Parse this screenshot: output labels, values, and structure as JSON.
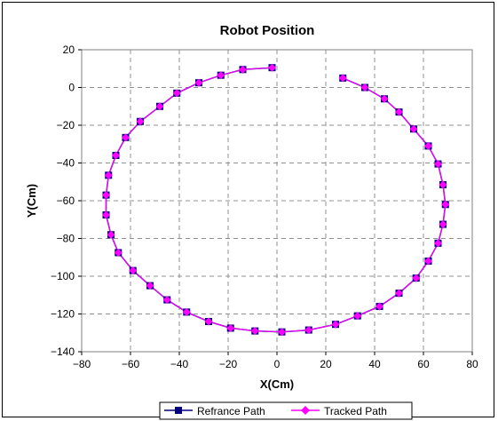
{
  "chart_data": {
    "type": "scatter",
    "title": "Robot Position",
    "xlabel": "X(Cm)",
    "ylabel": "Y(Cm)",
    "xlim": [
      -80,
      80
    ],
    "ylim": [
      -140,
      20
    ],
    "xticks": [
      -80,
      -60,
      -40,
      -20,
      0,
      20,
      40,
      60,
      80
    ],
    "yticks": [
      20,
      0,
      -20,
      -40,
      -60,
      -80,
      -100,
      -120,
      -140
    ],
    "grid": true,
    "legend_position": "bottom",
    "series": [
      {
        "name": "Refrance Path",
        "color": "#000080",
        "marker": "square",
        "x": [
          -2,
          -14,
          -23,
          -32,
          -41,
          -48,
          -56,
          -62,
          -66,
          -69,
          -70,
          -70,
          -68,
          -65,
          -59,
          -52,
          -45,
          -37,
          -28,
          -19,
          -9,
          2,
          13,
          24,
          33,
          42,
          50,
          57,
          62,
          66,
          68,
          69,
          68,
          66,
          62,
          56,
          50,
          44,
          36,
          27
        ],
        "y": [
          10.5,
          9.5,
          6.5,
          2.5,
          -3,
          -10,
          -18,
          -26.5,
          -36,
          -46.5,
          -57,
          -67.5,
          -78,
          -87.5,
          -97,
          -105,
          -112.5,
          -119,
          -124,
          -127.5,
          -129,
          -129.5,
          -128.5,
          -125.5,
          -121,
          -116,
          -109,
          -101,
          -92,
          -82.5,
          -72.5,
          -62,
          -51.5,
          -40.5,
          -31,
          -22,
          -13,
          -6,
          0,
          5
        ]
      },
      {
        "name": "Tracked Path",
        "color": "#ff00ff",
        "marker": "diamond",
        "x": [
          -2,
          -14,
          -23,
          -32,
          -41,
          -48,
          -56,
          -62,
          -66,
          -69,
          -70,
          -70,
          -68,
          -65,
          -59,
          -52,
          -45,
          -37,
          -28,
          -19,
          -9,
          2,
          13,
          24,
          33,
          42,
          50,
          57,
          62,
          66,
          68,
          69,
          68,
          66,
          62,
          56,
          50,
          44,
          36,
          27
        ],
        "y": [
          10.5,
          9.5,
          6.5,
          2.5,
          -3,
          -10,
          -18,
          -26.5,
          -36,
          -46.5,
          -57,
          -67.5,
          -78,
          -87.5,
          -97,
          -105,
          -112.5,
          -119,
          -124,
          -127.5,
          -129,
          -129.5,
          -128.5,
          -125.5,
          -121,
          -116,
          -109,
          -101,
          -92,
          -82.5,
          -72.5,
          -62,
          -51.5,
          -40.5,
          -31,
          -22,
          -13,
          -6,
          0,
          5
        ]
      }
    ]
  }
}
